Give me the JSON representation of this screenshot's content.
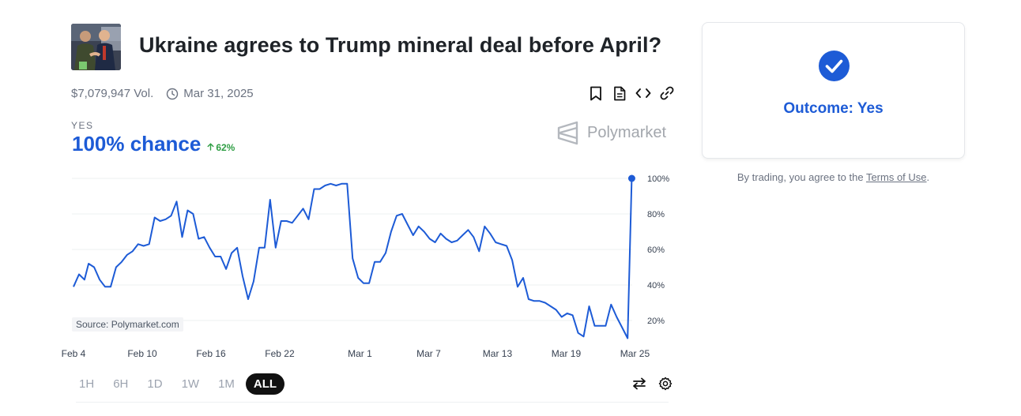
{
  "market": {
    "title": "Ukraine agrees to Trump mineral deal before April?",
    "volume": "$7,079,947 Vol.",
    "end_date": "Mar 31, 2025"
  },
  "actions": [
    {
      "icon": "bookmark-icon"
    },
    {
      "icon": "document-icon"
    },
    {
      "icon": "code-embed-icon"
    },
    {
      "icon": "link-icon"
    }
  ],
  "outcome_label": "YES",
  "chance_text": "100% chance",
  "change_text": "62%",
  "brand_name": "Polymarket",
  "source_text": "Source: Polymarket.com",
  "timeframes": [
    "1H",
    "6H",
    "1D",
    "1W",
    "1M",
    "ALL"
  ],
  "active_timeframe": "ALL",
  "colors": {
    "accent": "#1d5bd6",
    "up": "#2f9e44",
    "brand": "#a3a7ad"
  },
  "panel": {
    "outcome_text": "Outcome: Yes",
    "terms_prefix": "By trading, you agree to the",
    "terms_link": "Terms of Use",
    "terms_suffix": "."
  },
  "chart_data": {
    "type": "line",
    "x_ticks": [
      "Feb 4",
      "Feb 10",
      "Feb 16",
      "Feb 22",
      "Mar 1",
      "Mar 7",
      "Mar 13",
      "Mar 19",
      "Mar 25"
    ],
    "y_ticks": [
      "20%",
      "40%",
      "60%",
      "80%",
      "100%"
    ],
    "ylim": [
      0,
      100
    ],
    "grid": true,
    "series": [
      {
        "color": "#1d5bd6",
        "points": [
          [
            0,
            39
          ],
          [
            0.4,
            46
          ],
          [
            0.8,
            43
          ],
          [
            1.1,
            52
          ],
          [
            1.5,
            50
          ],
          [
            1.9,
            43
          ],
          [
            2.3,
            39
          ],
          [
            2.7,
            39
          ],
          [
            3.1,
            50
          ],
          [
            3.5,
            53
          ],
          [
            3.9,
            57
          ],
          [
            4.3,
            59
          ],
          [
            4.7,
            63
          ],
          [
            5.1,
            62
          ],
          [
            5.5,
            63
          ],
          [
            5.9,
            78
          ],
          [
            6.3,
            76
          ],
          [
            6.7,
            77
          ],
          [
            7.1,
            79
          ],
          [
            7.5,
            87
          ],
          [
            7.9,
            67
          ],
          [
            8.3,
            82
          ],
          [
            8.7,
            80
          ],
          [
            9.1,
            66
          ],
          [
            9.5,
            67
          ],
          [
            9.9,
            61
          ],
          [
            10.3,
            56
          ],
          [
            10.7,
            56
          ],
          [
            11.1,
            49
          ],
          [
            11.5,
            58
          ],
          [
            11.9,
            61
          ],
          [
            12.3,
            45
          ],
          [
            12.7,
            32
          ],
          [
            13.1,
            42
          ],
          [
            13.5,
            61
          ],
          [
            13.9,
            61
          ],
          [
            14.3,
            88
          ],
          [
            14.7,
            61
          ],
          [
            15.1,
            76
          ],
          [
            15.5,
            76
          ],
          [
            15.9,
            75
          ],
          [
            16.3,
            79
          ],
          [
            16.7,
            83
          ],
          [
            17.1,
            77
          ],
          [
            17.5,
            94
          ],
          [
            17.9,
            94
          ],
          [
            18.3,
            96
          ],
          [
            18.7,
            97
          ],
          [
            19.1,
            96
          ],
          [
            19.5,
            97
          ],
          [
            19.9,
            97
          ],
          [
            20.3,
            55
          ],
          [
            20.7,
            44
          ],
          [
            21.1,
            41
          ],
          [
            21.5,
            41
          ],
          [
            21.9,
            53
          ],
          [
            22.3,
            53
          ],
          [
            22.7,
            58
          ],
          [
            23.1,
            70
          ],
          [
            23.5,
            79
          ],
          [
            23.9,
            80
          ],
          [
            24.3,
            74
          ],
          [
            24.7,
            68
          ],
          [
            25.1,
            73
          ],
          [
            25.5,
            70
          ],
          [
            25.9,
            66
          ],
          [
            26.3,
            64
          ],
          [
            26.7,
            69
          ],
          [
            27.1,
            66
          ],
          [
            27.5,
            64
          ],
          [
            27.9,
            65
          ],
          [
            28.3,
            68
          ],
          [
            28.7,
            71
          ],
          [
            29.1,
            67
          ],
          [
            29.5,
            59
          ],
          [
            29.9,
            73
          ],
          [
            30.3,
            69
          ],
          [
            30.7,
            64
          ],
          [
            31.1,
            63
          ],
          [
            31.5,
            62
          ],
          [
            31.9,
            54
          ],
          [
            32.3,
            39
          ],
          [
            32.7,
            44
          ],
          [
            33.1,
            32
          ],
          [
            33.5,
            31
          ],
          [
            33.9,
            31
          ],
          [
            34.3,
            30
          ],
          [
            34.7,
            28
          ],
          [
            35.1,
            26
          ],
          [
            35.5,
            22
          ],
          [
            35.9,
            24
          ],
          [
            36.3,
            23
          ],
          [
            36.7,
            13
          ],
          [
            37.1,
            11
          ],
          [
            37.5,
            28
          ],
          [
            37.9,
            17
          ],
          [
            38.3,
            17
          ],
          [
            38.7,
            17
          ],
          [
            39.1,
            29
          ],
          [
            39.5,
            22
          ],
          [
            39.9,
            16
          ],
          [
            40.3,
            10
          ],
          [
            40.6,
            100
          ]
        ]
      }
    ]
  }
}
